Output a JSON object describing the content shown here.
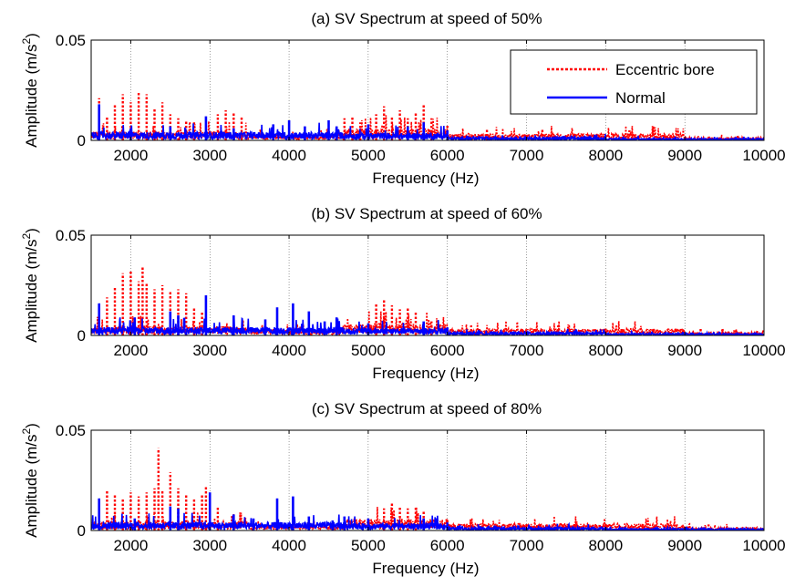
{
  "figure": {
    "xlabel": "Frequency (Hz)",
    "ylabel": "Amplitude (m/s",
    "ylabel_sup": "2",
    "ylabel_close": ")",
    "legend": {
      "items": [
        {
          "label": "Eccentric bore",
          "color": "#ff0000",
          "style": "dotted"
        },
        {
          "label": "Normal",
          "color": "#0000ff",
          "style": "solid"
        }
      ]
    }
  },
  "chart_data": [
    {
      "type": "line",
      "title": "(a) SV Spectrum at speed of 50%",
      "xlabel": "Frequency (Hz)",
      "ylabel": "Amplitude (m/s^2)",
      "xlim": [
        1500,
        10000
      ],
      "ylim": [
        0,
        0.05
      ],
      "xticks": [
        2000,
        3000,
        4000,
        5000,
        6000,
        7000,
        8000,
        9000,
        10000
      ],
      "yticks": [
        0,
        0.05
      ],
      "grid": "x",
      "legend": "top-right",
      "series": [
        {
          "name": "Eccentric bore",
          "color": "#ff0000",
          "style": "dotted",
          "peaks": [
            [
              1600,
              0.021
            ],
            [
              1700,
              0.012
            ],
            [
              1800,
              0.018
            ],
            [
              1900,
              0.023
            ],
            [
              2000,
              0.019
            ],
            [
              2100,
              0.024
            ],
            [
              2200,
              0.023
            ],
            [
              2300,
              0.016
            ],
            [
              2400,
              0.019
            ],
            [
              2500,
              0.013
            ],
            [
              2600,
              0.011
            ],
            [
              2700,
              0.01
            ],
            [
              2800,
              0.009
            ],
            [
              3100,
              0.013
            ],
            [
              3200,
              0.015
            ],
            [
              3300,
              0.014
            ],
            [
              3400,
              0.012
            ],
            [
              4700,
              0.011
            ],
            [
              4800,
              0.012
            ],
            [
              4900,
              0.009
            ],
            [
              5100,
              0.013
            ],
            [
              5200,
              0.017
            ],
            [
              5300,
              0.012
            ],
            [
              5400,
              0.015
            ],
            [
              5500,
              0.011
            ],
            [
              5600,
              0.014
            ],
            [
              5700,
              0.018
            ],
            [
              5800,
              0.011
            ],
            [
              6000,
              0.008
            ],
            [
              6500,
              0.006
            ],
            [
              7200,
              0.006
            ],
            [
              8300,
              0.005
            ],
            [
              8600,
              0.005
            ]
          ]
        },
        {
          "name": "Normal",
          "color": "#0000ff",
          "style": "solid",
          "peaks": [
            [
              1600,
              0.018
            ],
            [
              2000,
              0.006
            ],
            [
              2500,
              0.007
            ],
            [
              2950,
              0.012
            ],
            [
              3300,
              0.006
            ],
            [
              3800,
              0.008
            ],
            [
              4000,
              0.01
            ],
            [
              4200,
              0.007
            ],
            [
              4500,
              0.01
            ],
            [
              4600,
              0.007
            ],
            [
              5000,
              0.008
            ],
            [
              5500,
              0.007
            ],
            [
              5700,
              0.009
            ],
            [
              6000,
              0.005
            ]
          ]
        }
      ]
    },
    {
      "type": "line",
      "title": "(b) SV Spectrum at speed of 60%",
      "xlabel": "Frequency (Hz)",
      "ylabel": "Amplitude (m/s^2)",
      "xlim": [
        1500,
        10000
      ],
      "ylim": [
        0,
        0.05
      ],
      "xticks": [
        2000,
        3000,
        4000,
        5000,
        6000,
        7000,
        8000,
        9000,
        10000
      ],
      "yticks": [
        0,
        0.05
      ],
      "grid": "x",
      "series": [
        {
          "name": "Eccentric bore",
          "color": "#ff0000",
          "style": "dotted",
          "peaks": [
            [
              1600,
              0.012
            ],
            [
              1700,
              0.019
            ],
            [
              1800,
              0.024
            ],
            [
              1900,
              0.031
            ],
            [
              2000,
              0.032
            ],
            [
              2100,
              0.027
            ],
            [
              2150,
              0.034
            ],
            [
              2200,
              0.026
            ],
            [
              2300,
              0.023
            ],
            [
              2400,
              0.025
            ],
            [
              2500,
              0.022
            ],
            [
              2600,
              0.023
            ],
            [
              2700,
              0.021
            ],
            [
              2800,
              0.014
            ],
            [
              2900,
              0.012
            ],
            [
              5100,
              0.016
            ],
            [
              5200,
              0.018
            ],
            [
              5300,
              0.015
            ],
            [
              5400,
              0.013
            ],
            [
              5500,
              0.014
            ],
            [
              5600,
              0.012
            ],
            [
              5800,
              0.007
            ],
            [
              6300,
              0.005
            ],
            [
              7100,
              0.004
            ],
            [
              7400,
              0.005
            ],
            [
              8200,
              0.004
            ],
            [
              9200,
              0.004
            ]
          ]
        },
        {
          "name": "Normal",
          "color": "#0000ff",
          "style": "solid",
          "peaks": [
            [
              1600,
              0.016
            ],
            [
              2050,
              0.009
            ],
            [
              2500,
              0.012
            ],
            [
              2600,
              0.01
            ],
            [
              2950,
              0.02
            ],
            [
              3300,
              0.01
            ],
            [
              3700,
              0.008
            ],
            [
              3850,
              0.014
            ],
            [
              4050,
              0.016
            ],
            [
              4250,
              0.012
            ],
            [
              4450,
              0.007
            ],
            [
              4600,
              0.009
            ],
            [
              5000,
              0.006
            ],
            [
              5700,
              0.007
            ],
            [
              6000,
              0.004
            ]
          ]
        }
      ]
    },
    {
      "type": "line",
      "title": "(c) SV Spectrum at speed of 80%",
      "xlabel": "Frequency (Hz)",
      "ylabel": "Amplitude (m/s^2)",
      "xlim": [
        1500,
        10000
      ],
      "ylim": [
        0,
        0.05
      ],
      "xticks": [
        2000,
        3000,
        4000,
        5000,
        6000,
        7000,
        8000,
        9000,
        10000
      ],
      "yticks": [
        0,
        0.05
      ],
      "grid": "x",
      "series": [
        {
          "name": "Eccentric bore",
          "color": "#ff0000",
          "style": "dotted",
          "peaks": [
            [
              1600,
              0.014
            ],
            [
              1700,
              0.02
            ],
            [
              1800,
              0.018
            ],
            [
              1900,
              0.016
            ],
            [
              2000,
              0.019
            ],
            [
              2100,
              0.017
            ],
            [
              2200,
              0.019
            ],
            [
              2300,
              0.021
            ],
            [
              2350,
              0.041
            ],
            [
              2400,
              0.02
            ],
            [
              2500,
              0.029
            ],
            [
              2600,
              0.021
            ],
            [
              2700,
              0.018
            ],
            [
              2800,
              0.016
            ],
            [
              2900,
              0.018
            ],
            [
              2950,
              0.022
            ],
            [
              3100,
              0.012
            ],
            [
              5200,
              0.011
            ],
            [
              5300,
              0.014
            ],
            [
              5400,
              0.012
            ],
            [
              5500,
              0.011
            ],
            [
              5600,
              0.012
            ],
            [
              5700,
              0.01
            ],
            [
              6000,
              0.006
            ],
            [
              7000,
              0.004
            ],
            [
              8000,
              0.004
            ],
            [
              9300,
              0.003
            ]
          ]
        },
        {
          "name": "Normal",
          "color": "#0000ff",
          "style": "solid",
          "peaks": [
            [
              1600,
              0.016
            ],
            [
              2050,
              0.006
            ],
            [
              2500,
              0.012
            ],
            [
              2600,
              0.011
            ],
            [
              3000,
              0.019
            ],
            [
              3300,
              0.008
            ],
            [
              3550,
              0.006
            ],
            [
              3850,
              0.016
            ],
            [
              4050,
              0.017
            ],
            [
              4250,
              0.007
            ],
            [
              4550,
              0.005
            ],
            [
              4700,
              0.007
            ],
            [
              5000,
              0.006
            ],
            [
              5700,
              0.006
            ],
            [
              6000,
              0.004
            ]
          ]
        }
      ]
    }
  ]
}
